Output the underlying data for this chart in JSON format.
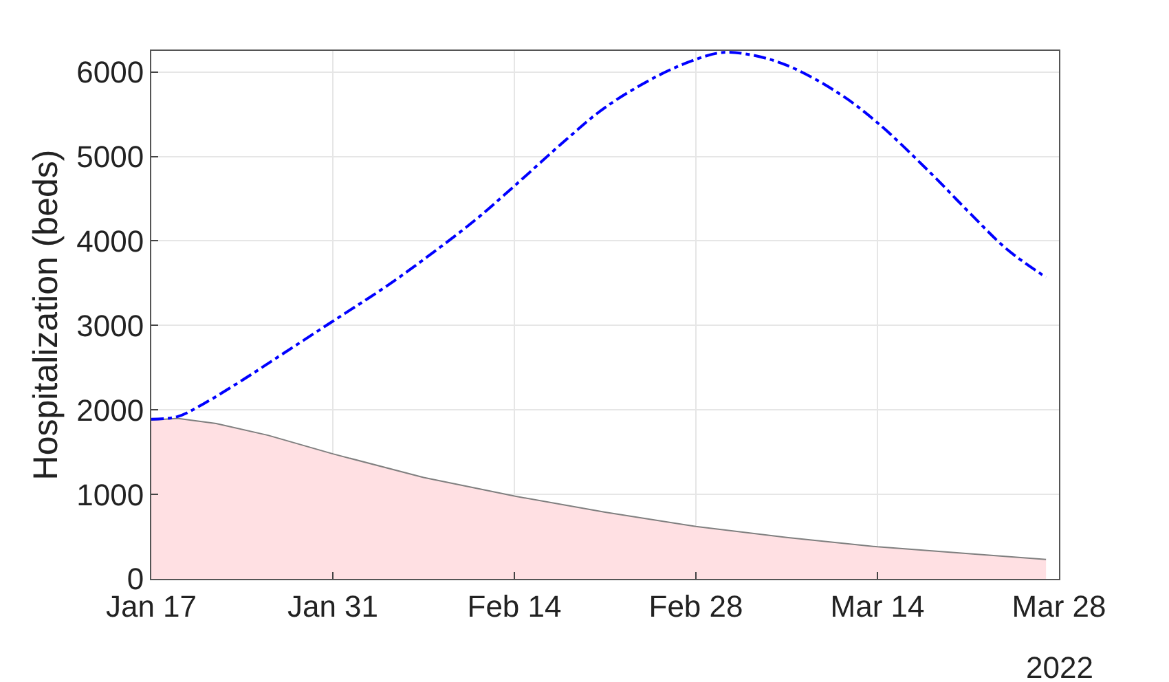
{
  "chart_data": {
    "type": "line",
    "ylabel": "Hospitalization (beds)",
    "annotations": [
      "2022"
    ],
    "xlim": [
      "2022-01-17",
      "2022-03-28"
    ],
    "xticks": [
      {
        "value": "2022-01-17",
        "label": "Jan 17"
      },
      {
        "value": "2022-01-31",
        "label": "Jan 31"
      },
      {
        "value": "2022-02-14",
        "label": "Feb 14"
      },
      {
        "value": "2022-02-28",
        "label": "Feb 28"
      },
      {
        "value": "2022-03-14",
        "label": "Mar 14"
      },
      {
        "value": "2022-03-28",
        "label": "Mar 28"
      }
    ],
    "ylim": [
      0,
      6250
    ],
    "yticks": [
      0,
      1000,
      2000,
      3000,
      4000,
      5000,
      6000
    ],
    "grid": true,
    "series": [
      {
        "type": "area",
        "color": "#ffe0e3",
        "x": [
          "2022-01-17",
          "2022-01-19",
          "2022-01-22",
          "2022-01-26",
          "2022-01-31",
          "2022-02-07",
          "2022-02-14",
          "2022-02-21",
          "2022-02-28",
          "2022-03-07",
          "2022-03-14",
          "2022-03-21",
          "2022-03-27"
        ],
        "values": [
          1880,
          1900,
          1840,
          1700,
          1480,
          1200,
          980,
          790,
          620,
          490,
          380,
          300,
          230
        ]
      },
      {
        "color": "#0000ff",
        "line_style": "dashed",
        "x": [
          "2022-01-17",
          "2022-01-19",
          "2022-01-21",
          "2022-01-24",
          "2022-01-27",
          "2022-01-31",
          "2022-02-04",
          "2022-02-07",
          "2022-02-11",
          "2022-02-14",
          "2022-02-18",
          "2022-02-21",
          "2022-02-25",
          "2022-02-28",
          "2022-03-02",
          "2022-03-04",
          "2022-03-07",
          "2022-03-11",
          "2022-03-14",
          "2022-03-18",
          "2022-03-21",
          "2022-03-24",
          "2022-03-27"
        ],
        "values": [
          1890,
          1920,
          2070,
          2350,
          2650,
          3050,
          3450,
          3780,
          4250,
          4650,
          5200,
          5580,
          5950,
          6150,
          6230,
          6210,
          6080,
          5750,
          5400,
          4820,
          4350,
          3900,
          3570
        ]
      }
    ]
  }
}
